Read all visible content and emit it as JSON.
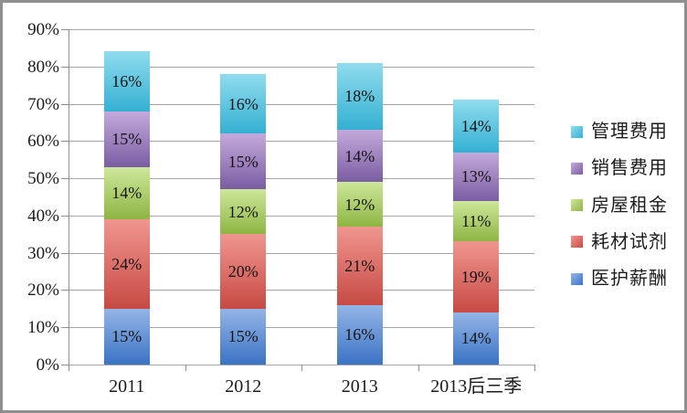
{
  "chart_data": {
    "type": "bar",
    "stacked": true,
    "grid": true,
    "value_suffix": "%",
    "categories": [
      "2011",
      "2012",
      "2013",
      "2013后三季"
    ],
    "series": [
      {
        "name": "医护薪酬",
        "values": [
          15,
          15,
          16,
          14
        ],
        "fill_top": "#94b5e6",
        "fill_bottom": "#3b73c5"
      },
      {
        "name": "耗材试剂",
        "values": [
          24,
          20,
          21,
          19
        ],
        "fill_top": "#f0968f",
        "fill_bottom": "#c74a44"
      },
      {
        "name": "房屋租金",
        "values": [
          14,
          12,
          12,
          11
        ],
        "fill_top": "#cde79a",
        "fill_bottom": "#8fb544"
      },
      {
        "name": "销售费用",
        "values": [
          15,
          15,
          14,
          13
        ],
        "fill_top": "#c3aadb",
        "fill_bottom": "#7b5da3"
      },
      {
        "name": "管理费用",
        "values": [
          16,
          16,
          18,
          14
        ],
        "fill_top": "#90dcee",
        "fill_bottom": "#34b0d2"
      }
    ],
    "y_axis": {
      "min": 0,
      "max": 90,
      "step": 10,
      "tick_labels": [
        "0%",
        "10%",
        "20%",
        "30%",
        "40%",
        "50%",
        "60%",
        "70%",
        "80%",
        "90%"
      ]
    },
    "legend": {
      "position": "right",
      "order": "reverse-of-stack"
    },
    "colors": {
      "gridline": "#a6a6a6",
      "axis": "#8f8f8f",
      "frame_border": "#8e8e8e",
      "text": "#1c1c1c"
    }
  }
}
